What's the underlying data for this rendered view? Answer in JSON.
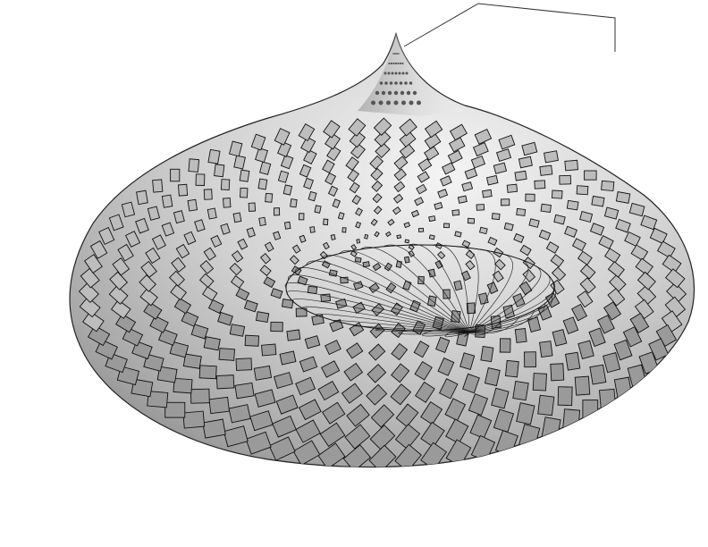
{
  "render": {
    "subject": "lattice-surface-render",
    "background_color": "#ffffff",
    "surface_light": "#f2f2f2",
    "surface_mid": "#c4c4c4",
    "surface_dark": "#8c8c8c",
    "hole_fill": "#9a9a9a",
    "edge_color": "#111111",
    "leader_color": "#333333"
  }
}
